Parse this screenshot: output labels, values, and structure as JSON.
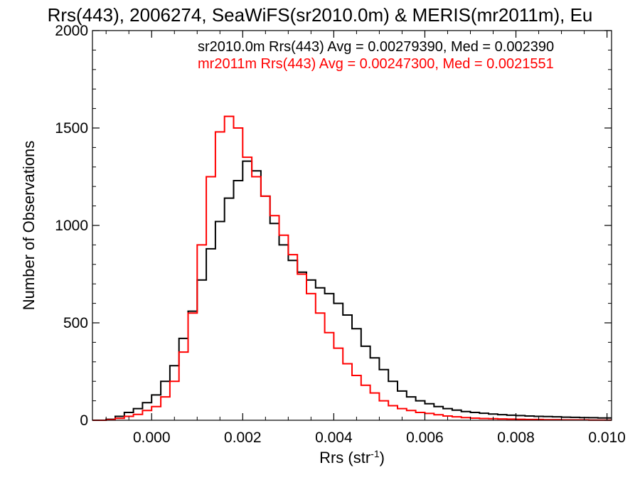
{
  "chart_data": {
    "type": "line",
    "title": "Rrs(443), 2006274, SeaWiFS(sr2010.0m) & MERIS(mr2011m), Eu",
    "xlabel_base": "Rrs (str",
    "xlabel_sup": "-1",
    "xlabel_close": ")",
    "ylabel": "Number of Observations",
    "xlim": [
      -0.0013,
      0.0101
    ],
    "ylim": [
      0,
      2000
    ],
    "xticks": [
      0.0,
      0.002,
      0.004,
      0.006,
      0.008,
      0.01
    ],
    "xtick_labels": [
      "0.000",
      "0.002",
      "0.004",
      "0.006",
      "0.008",
      "0.010"
    ],
    "yticks": [
      0,
      500,
      1000,
      1500,
      2000
    ],
    "ytick_labels": [
      "0",
      "500",
      "1000",
      "1500",
      "2000"
    ],
    "grid": false,
    "legend_position": "top-right",
    "series": [
      {
        "name": "sr2010.0m Rrs(443) Avg = 0.00279390, Med = 0.002390",
        "color": "#000000",
        "x": [
          -0.0013,
          -0.001,
          -0.0008,
          -0.0006,
          -0.0004,
          -0.0002,
          0.0,
          0.0002,
          0.0004,
          0.0006,
          0.0008,
          0.001,
          0.0012,
          0.0014,
          0.0016,
          0.0018,
          0.002,
          0.0022,
          0.0024,
          0.0026,
          0.0028,
          0.003,
          0.0032,
          0.0034,
          0.0036,
          0.0038,
          0.004,
          0.0042,
          0.0044,
          0.0046,
          0.0048,
          0.005,
          0.0052,
          0.0054,
          0.0056,
          0.0058,
          0.006,
          0.0062,
          0.0064,
          0.0066,
          0.0068,
          0.007,
          0.0072,
          0.0074,
          0.0076,
          0.0078,
          0.008,
          0.0082,
          0.0084,
          0.0086,
          0.0088,
          0.009,
          0.0092,
          0.0094,
          0.0096,
          0.0098,
          0.01
        ],
        "y": [
          0,
          5,
          20,
          40,
          60,
          90,
          130,
          200,
          280,
          420,
          560,
          720,
          880,
          1020,
          1140,
          1230,
          1330,
          1280,
          1150,
          1010,
          900,
          820,
          760,
          720,
          680,
          650,
          600,
          540,
          470,
          380,
          320,
          260,
          200,
          150,
          120,
          100,
          85,
          70,
          60,
          52,
          45,
          40,
          36,
          32,
          29,
          26,
          24,
          22,
          20,
          19,
          18,
          16,
          15,
          14,
          13,
          12,
          12
        ]
      },
      {
        "name": "mr2011m Rrs(443) Avg = 0.00247300, Med = 0.0021551",
        "color": "#ff0000",
        "x": [
          -0.0013,
          -0.001,
          -0.0008,
          -0.0006,
          -0.0004,
          -0.0002,
          0.0,
          0.0002,
          0.0004,
          0.0006,
          0.0008,
          0.001,
          0.0012,
          0.0014,
          0.0016,
          0.0018,
          0.002,
          0.0022,
          0.0024,
          0.0026,
          0.0028,
          0.003,
          0.0032,
          0.0034,
          0.0036,
          0.0038,
          0.004,
          0.0042,
          0.0044,
          0.0046,
          0.0048,
          0.005,
          0.0052,
          0.0054,
          0.0056,
          0.0058,
          0.006,
          0.0062,
          0.0064,
          0.0066,
          0.0068,
          0.007,
          0.0072,
          0.0074,
          0.0076,
          0.0078,
          0.008,
          0.0082,
          0.0084,
          0.0086,
          0.0088,
          0.009,
          0.0092,
          0.0094,
          0.0096,
          0.0098,
          0.01
        ],
        "y": [
          0,
          3,
          10,
          20,
          30,
          50,
          70,
          120,
          200,
          350,
          550,
          900,
          1250,
          1480,
          1560,
          1500,
          1350,
          1250,
          1150,
          1050,
          950,
          850,
          750,
          650,
          550,
          450,
          370,
          290,
          230,
          180,
          140,
          100,
          75,
          60,
          50,
          40,
          35,
          28,
          22,
          18,
          14,
          11,
          9,
          8,
          7,
          6,
          5,
          4,
          4,
          3,
          3,
          2,
          2,
          2,
          1,
          1,
          1
        ]
      }
    ]
  }
}
